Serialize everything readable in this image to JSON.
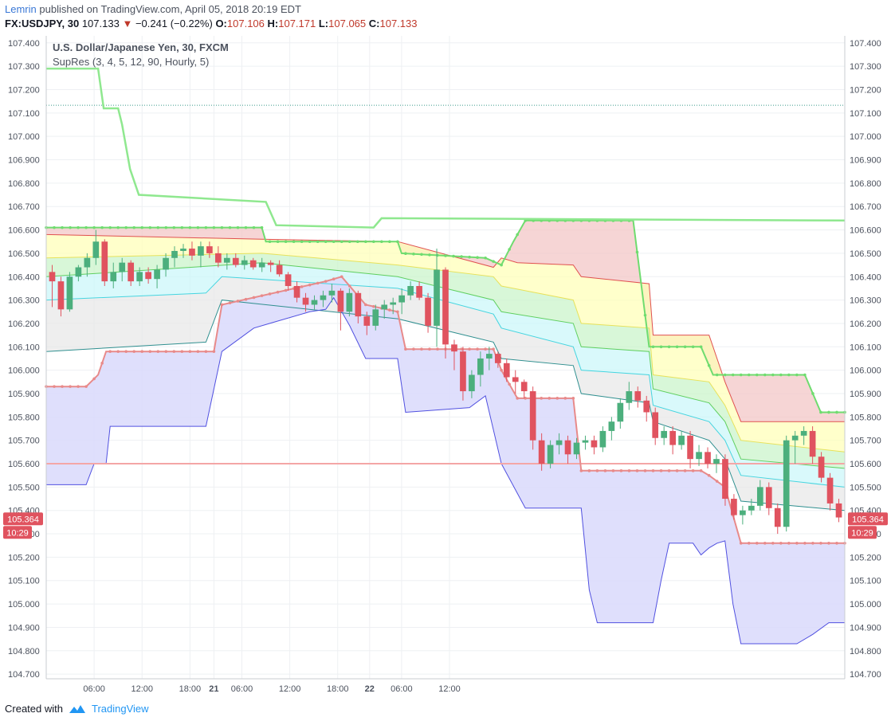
{
  "header": {
    "author": "Lemrin",
    "published_text": "published on TradingView.com, April 05, 2018 20:19 EDT",
    "symbol": "FX:USDJPY, 30",
    "last": "107.133",
    "change": "−0.241 (−0.22%)",
    "o_label": "O:",
    "o": "107.106",
    "h_label": "H:",
    "h": "107.171",
    "l_label": "L:",
    "l": "107.065",
    "c_label": "C:",
    "c": "107.133"
  },
  "legend": {
    "title": "U.S. Dollar/Japanese Yen, 30, FXCM",
    "indicator": "SupRes (3, 4, 5, 12, 90, Hourly, 5)"
  },
  "price_tag": {
    "value": "105.364",
    "time": "10:29"
  },
  "footer": {
    "created": "Created with",
    "brand": "TradingView"
  },
  "colors": {
    "up": "#4caf7d",
    "down": "#e0535f",
    "support": "#e88a8a",
    "resistance": "#6fdc6f",
    "band_low": "#5050e0"
  },
  "chart_data": {
    "type": "candlestick",
    "title": "U.S. Dollar/Japanese Yen, 30, FXCM",
    "y_ticks": [
      "107.400",
      "107.300",
      "107.200",
      "107.100",
      "107.000",
      "106.900",
      "106.800",
      "106.700",
      "106.600",
      "106.500",
      "106.400",
      "106.300",
      "106.200",
      "106.100",
      "106.000",
      "105.900",
      "105.800",
      "105.700",
      "105.600",
      "105.500",
      "105.400",
      "105.300",
      "105.200",
      "105.100",
      "105.000",
      "104.900",
      "104.800",
      "104.700"
    ],
    "x_ticks": [
      "06:00",
      "12:00",
      "18:00",
      "21",
      "06:00",
      "12:00",
      "18:00",
      "22",
      "06:00",
      "12:00"
    ],
    "ylim": [
      104.68,
      107.43
    ],
    "xlim": [
      0,
      100
    ],
    "x_tick_positions": [
      6,
      12,
      18,
      21,
      24.5,
      30.5,
      36.5,
      40.5,
      44.5,
      50.5
    ],
    "candles": [
      {
        "o": 106.42,
        "h": 106.45,
        "l": 106.27,
        "c": 106.38
      },
      {
        "o": 106.38,
        "h": 106.4,
        "l": 106.23,
        "c": 106.26
      },
      {
        "o": 106.26,
        "h": 106.42,
        "l": 106.25,
        "c": 106.4
      },
      {
        "o": 106.4,
        "h": 106.45,
        "l": 106.38,
        "c": 106.44
      },
      {
        "o": 106.44,
        "h": 106.5,
        "l": 106.4,
        "c": 106.48
      },
      {
        "o": 106.48,
        "h": 106.6,
        "l": 106.45,
        "c": 106.55
      },
      {
        "o": 106.55,
        "h": 106.56,
        "l": 106.36,
        "c": 106.38
      },
      {
        "o": 106.38,
        "h": 106.46,
        "l": 106.35,
        "c": 106.42
      },
      {
        "o": 106.42,
        "h": 106.48,
        "l": 106.38,
        "c": 106.46
      },
      {
        "o": 106.46,
        "h": 106.47,
        "l": 106.36,
        "c": 106.38
      },
      {
        "o": 106.38,
        "h": 106.44,
        "l": 106.36,
        "c": 106.42
      },
      {
        "o": 106.42,
        "h": 106.44,
        "l": 106.37,
        "c": 106.39
      },
      {
        "o": 106.39,
        "h": 106.45,
        "l": 106.35,
        "c": 106.43
      },
      {
        "o": 106.43,
        "h": 106.5,
        "l": 106.4,
        "c": 106.48
      },
      {
        "o": 106.48,
        "h": 106.53,
        "l": 106.44,
        "c": 106.51
      },
      {
        "o": 106.51,
        "h": 106.54,
        "l": 106.48,
        "c": 106.52
      },
      {
        "o": 106.52,
        "h": 106.55,
        "l": 106.47,
        "c": 106.49
      },
      {
        "o": 106.49,
        "h": 106.55,
        "l": 106.44,
        "c": 106.53
      },
      {
        "o": 106.53,
        "h": 106.55,
        "l": 106.48,
        "c": 106.5
      },
      {
        "o": 106.5,
        "h": 106.53,
        "l": 106.44,
        "c": 106.46
      },
      {
        "o": 106.46,
        "h": 106.5,
        "l": 106.43,
        "c": 106.48
      },
      {
        "o": 106.48,
        "h": 106.5,
        "l": 106.44,
        "c": 106.45
      },
      {
        "o": 106.45,
        "h": 106.49,
        "l": 106.43,
        "c": 106.47
      },
      {
        "o": 106.47,
        "h": 106.48,
        "l": 106.43,
        "c": 106.44
      },
      {
        "o": 106.44,
        "h": 106.48,
        "l": 106.42,
        "c": 106.46
      },
      {
        "o": 106.46,
        "h": 106.47,
        "l": 106.42,
        "c": 106.45
      },
      {
        "o": 106.45,
        "h": 106.47,
        "l": 106.4,
        "c": 106.41
      },
      {
        "o": 106.41,
        "h": 106.42,
        "l": 106.34,
        "c": 106.36
      },
      {
        "o": 106.36,
        "h": 106.38,
        "l": 106.29,
        "c": 106.31
      },
      {
        "o": 106.31,
        "h": 106.33,
        "l": 106.25,
        "c": 106.28
      },
      {
        "o": 106.28,
        "h": 106.32,
        "l": 106.26,
        "c": 106.3
      },
      {
        "o": 106.3,
        "h": 106.34,
        "l": 106.27,
        "c": 106.32
      },
      {
        "o": 106.32,
        "h": 106.37,
        "l": 106.29,
        "c": 106.34
      },
      {
        "o": 106.34,
        "h": 106.35,
        "l": 106.17,
        "c": 106.25
      },
      {
        "o": 106.25,
        "h": 106.35,
        "l": 106.23,
        "c": 106.33
      },
      {
        "o": 106.33,
        "h": 106.34,
        "l": 106.2,
        "c": 106.23
      },
      {
        "o": 106.23,
        "h": 106.25,
        "l": 106.15,
        "c": 106.19
      },
      {
        "o": 106.19,
        "h": 106.28,
        "l": 106.17,
        "c": 106.26
      },
      {
        "o": 106.26,
        "h": 106.3,
        "l": 106.22,
        "c": 106.28
      },
      {
        "o": 106.28,
        "h": 106.31,
        "l": 106.24,
        "c": 106.29
      },
      {
        "o": 106.29,
        "h": 106.35,
        "l": 106.24,
        "c": 106.32
      },
      {
        "o": 106.32,
        "h": 106.38,
        "l": 106.3,
        "c": 106.36
      },
      {
        "o": 106.36,
        "h": 106.38,
        "l": 106.3,
        "c": 106.31
      },
      {
        "o": 106.31,
        "h": 106.33,
        "l": 106.16,
        "c": 106.19
      },
      {
        "o": 106.19,
        "h": 106.52,
        "l": 106.1,
        "c": 106.43
      },
      {
        "o": 106.43,
        "h": 106.44,
        "l": 106.05,
        "c": 106.11
      },
      {
        "o": 106.11,
        "h": 106.13,
        "l": 106.0,
        "c": 106.08
      },
      {
        "o": 106.08,
        "h": 106.1,
        "l": 105.87,
        "c": 105.91
      },
      {
        "o": 105.91,
        "h": 106.0,
        "l": 105.88,
        "c": 105.98
      },
      {
        "o": 105.98,
        "h": 106.08,
        "l": 105.93,
        "c": 106.05
      },
      {
        "o": 106.05,
        "h": 106.1,
        "l": 106.0,
        "c": 106.07
      },
      {
        "o": 106.07,
        "h": 106.08,
        "l": 106.01,
        "c": 106.03
      },
      {
        "o": 106.03,
        "h": 106.05,
        "l": 105.95,
        "c": 105.97
      },
      {
        "o": 105.97,
        "h": 106.0,
        "l": 105.9,
        "c": 105.95
      },
      {
        "o": 105.95,
        "h": 105.96,
        "l": 105.88,
        "c": 105.91
      },
      {
        "o": 105.91,
        "h": 105.93,
        "l": 105.66,
        "c": 105.7
      },
      {
        "o": 105.7,
        "h": 105.73,
        "l": 105.57,
        "c": 105.6
      },
      {
        "o": 105.6,
        "h": 105.7,
        "l": 105.58,
        "c": 105.68
      },
      {
        "o": 105.68,
        "h": 105.73,
        "l": 105.64,
        "c": 105.7
      },
      {
        "o": 105.7,
        "h": 105.72,
        "l": 105.6,
        "c": 105.64
      },
      {
        "o": 105.64,
        "h": 105.71,
        "l": 105.62,
        "c": 105.69
      },
      {
        "o": 105.69,
        "h": 105.72,
        "l": 105.66,
        "c": 105.7
      },
      {
        "o": 105.7,
        "h": 105.72,
        "l": 105.64,
        "c": 105.67
      },
      {
        "o": 105.67,
        "h": 105.76,
        "l": 105.65,
        "c": 105.74
      },
      {
        "o": 105.74,
        "h": 105.8,
        "l": 105.7,
        "c": 105.78
      },
      {
        "o": 105.78,
        "h": 105.88,
        "l": 105.75,
        "c": 105.86
      },
      {
        "o": 105.86,
        "h": 105.95,
        "l": 105.83,
        "c": 105.91
      },
      {
        "o": 105.91,
        "h": 105.93,
        "l": 105.84,
        "c": 105.87
      },
      {
        "o": 105.87,
        "h": 105.89,
        "l": 105.78,
        "c": 105.82
      },
      {
        "o": 105.82,
        "h": 105.84,
        "l": 105.68,
        "c": 105.71
      },
      {
        "o": 105.71,
        "h": 105.76,
        "l": 105.68,
        "c": 105.74
      },
      {
        "o": 105.74,
        "h": 105.76,
        "l": 105.64,
        "c": 105.68
      },
      {
        "o": 105.68,
        "h": 105.74,
        "l": 105.66,
        "c": 105.72
      },
      {
        "o": 105.72,
        "h": 105.74,
        "l": 105.58,
        "c": 105.62
      },
      {
        "o": 105.62,
        "h": 105.68,
        "l": 105.59,
        "c": 105.65
      },
      {
        "o": 105.65,
        "h": 105.67,
        "l": 105.58,
        "c": 105.6
      },
      {
        "o": 105.6,
        "h": 105.64,
        "l": 105.56,
        "c": 105.62
      },
      {
        "o": 105.62,
        "h": 105.64,
        "l": 105.42,
        "c": 105.45
      },
      {
        "o": 105.45,
        "h": 105.47,
        "l": 105.36,
        "c": 105.38
      },
      {
        "o": 105.38,
        "h": 105.42,
        "l": 105.34,
        "c": 105.4
      },
      {
        "o": 105.4,
        "h": 105.45,
        "l": 105.38,
        "c": 105.42
      },
      {
        "o": 105.42,
        "h": 105.53,
        "l": 105.4,
        "c": 105.5
      },
      {
        "o": 105.5,
        "h": 105.52,
        "l": 105.38,
        "c": 105.41
      },
      {
        "o": 105.41,
        "h": 105.43,
        "l": 105.3,
        "c": 105.33
      },
      {
        "o": 105.33,
        "h": 105.72,
        "l": 105.31,
        "c": 105.7
      },
      {
        "o": 105.7,
        "h": 105.74,
        "l": 105.6,
        "c": 105.72
      },
      {
        "o": 105.72,
        "h": 105.76,
        "l": 105.68,
        "c": 105.74
      },
      {
        "o": 105.74,
        "h": 105.76,
        "l": 105.6,
        "c": 105.63
      },
      {
        "o": 105.63,
        "h": 105.65,
        "l": 105.52,
        "c": 105.54
      },
      {
        "o": 105.54,
        "h": 105.56,
        "l": 105.4,
        "c": 105.43
      },
      {
        "o": 105.43,
        "h": 105.45,
        "l": 105.35,
        "c": 105.37
      }
    ],
    "current_price": 105.364,
    "dotted_line": 107.133,
    "pink_level": 105.6,
    "r3_line": [
      [
        0,
        107.29
      ],
      [
        6.5,
        107.29
      ],
      [
        7.2,
        107.12
      ],
      [
        9.0,
        107.12
      ],
      [
        9.5,
        107.05
      ],
      [
        10.5,
        106.86
      ],
      [
        11.6,
        106.75
      ],
      [
        27.5,
        106.72
      ],
      [
        28.8,
        106.62
      ],
      [
        41.0,
        106.61
      ],
      [
        42.0,
        106.65
      ],
      [
        100,
        106.64
      ]
    ],
    "top_dots": [
      [
        0,
        106.61
      ],
      [
        27,
        106.61
      ],
      [
        27.5,
        106.55
      ],
      [
        44,
        106.55
      ],
      [
        44.5,
        106.5
      ],
      [
        55,
        106.48
      ],
      [
        57,
        106.45
      ],
      [
        58.5,
        106.55
      ],
      [
        60,
        106.64
      ],
      [
        73.5,
        106.64
      ],
      [
        75.5,
        106.1
      ],
      [
        82,
        106.1
      ],
      [
        83.5,
        105.98
      ],
      [
        95,
        105.98
      ],
      [
        97,
        105.82
      ],
      [
        100,
        105.82
      ]
    ],
    "support_dots": [
      [
        0,
        105.93
      ],
      [
        5,
        105.93
      ],
      [
        6.5,
        105.98
      ],
      [
        7.5,
        106.08
      ],
      [
        21,
        106.08
      ],
      [
        22,
        106.28
      ],
      [
        35,
        106.38
      ],
      [
        37,
        106.4
      ],
      [
        40,
        106.28
      ],
      [
        44,
        106.25
      ],
      [
        45,
        106.09
      ],
      [
        56,
        106.09
      ],
      [
        57,
        106.0
      ],
      [
        59,
        105.88
      ],
      [
        66,
        105.88
      ],
      [
        67,
        105.57
      ],
      [
        82,
        105.57
      ],
      [
        83,
        105.55
      ],
      [
        85,
        105.5
      ],
      [
        87,
        105.26
      ],
      [
        100,
        105.26
      ]
    ],
    "band_low": [
      [
        0,
        105.51
      ],
      [
        5,
        105.51
      ],
      [
        6,
        105.6
      ],
      [
        7.5,
        105.6
      ],
      [
        8,
        105.76
      ],
      [
        20,
        105.76
      ],
      [
        22,
        106.08
      ],
      [
        26,
        106.18
      ],
      [
        28,
        106.2
      ],
      [
        33,
        106.25
      ],
      [
        35,
        106.26
      ],
      [
        36,
        106.31
      ],
      [
        38,
        106.19
      ],
      [
        40,
        106.05
      ],
      [
        41,
        106.05
      ],
      [
        44,
        106.05
      ],
      [
        45,
        105.82
      ],
      [
        53,
        105.84
      ],
      [
        55,
        105.89
      ],
      [
        57,
        105.6
      ],
      [
        60,
        105.41
      ],
      [
        67,
        105.41
      ],
      [
        68,
        105.06
      ],
      [
        69,
        104.92
      ],
      [
        76,
        104.92
      ],
      [
        77,
        105.1
      ],
      [
        78,
        105.26
      ],
      [
        81,
        105.26
      ],
      [
        82,
        105.21
      ],
      [
        83,
        105.24
      ],
      [
        84,
        105.26
      ],
      [
        85,
        105.27
      ],
      [
        86,
        105.0
      ],
      [
        87,
        104.83
      ],
      [
        94,
        104.83
      ],
      [
        96,
        104.87
      ],
      [
        98,
        104.92
      ],
      [
        100,
        104.92
      ]
    ],
    "bands": [
      {
        "color": "#f2c3c3",
        "line": "#e05050",
        "top": "r3",
        "pts": [
          [
            0,
            106.58
          ],
          [
            27,
            106.56
          ],
          [
            44,
            106.55
          ],
          [
            56,
            106.44
          ],
          [
            57,
            106.48
          ],
          [
            59,
            106.46
          ],
          [
            66,
            106.45
          ],
          [
            67,
            106.4
          ],
          [
            75.5,
            106.37
          ],
          [
            76,
            106.15
          ],
          [
            83,
            106.15
          ],
          [
            85,
            105.95
          ],
          [
            87,
            105.78
          ],
          [
            100,
            105.78
          ]
        ]
      },
      {
        "color": "#ffffb5",
        "line": "#e7e25a",
        "pts": [
          [
            0,
            106.48
          ],
          [
            27,
            106.5
          ],
          [
            44,
            106.45
          ],
          [
            56,
            106.4
          ],
          [
            57,
            106.36
          ],
          [
            66,
            106.3
          ],
          [
            67,
            106.2
          ],
          [
            75.5,
            106.18
          ],
          [
            76,
            105.98
          ],
          [
            83,
            105.95
          ],
          [
            85,
            105.85
          ],
          [
            87,
            105.7
          ],
          [
            100,
            105.65
          ]
        ]
      },
      {
        "color": "#c8f4c8",
        "line": "#5fcf5f",
        "pts": [
          [
            0,
            106.4
          ],
          [
            27,
            106.46
          ],
          [
            44,
            106.4
          ],
          [
            56,
            106.3
          ],
          [
            57,
            106.25
          ],
          [
            66,
            106.2
          ],
          [
            67,
            106.1
          ],
          [
            75.5,
            106.08
          ],
          [
            76,
            105.92
          ],
          [
            83,
            105.86
          ],
          [
            85,
            105.78
          ],
          [
            87,
            105.62
          ],
          [
            100,
            105.58
          ]
        ]
      },
      {
        "color": "#c9f6f9",
        "line": "#45d5e0",
        "pts": [
          [
            0,
            106.3
          ],
          [
            20,
            106.33
          ],
          [
            22,
            106.4
          ],
          [
            44,
            106.35
          ],
          [
            56,
            106.24
          ],
          [
            57,
            106.18
          ],
          [
            66,
            106.1
          ],
          [
            67,
            106.0
          ],
          [
            75.5,
            105.98
          ],
          [
            76,
            105.85
          ],
          [
            83,
            105.78
          ],
          [
            85,
            105.7
          ],
          [
            87,
            105.55
          ],
          [
            100,
            105.5
          ]
        ]
      },
      {
        "color": "#e7e7e7",
        "line": "#2f8f8f",
        "pts": [
          [
            0,
            106.08
          ],
          [
            20,
            106.12
          ],
          [
            22,
            106.3
          ],
          [
            44,
            106.22
          ],
          [
            56,
            106.12
          ],
          [
            57,
            106.05
          ],
          [
            66,
            106.02
          ],
          [
            67,
            105.9
          ],
          [
            75.5,
            105.86
          ],
          [
            76,
            105.78
          ],
          [
            83,
            105.7
          ],
          [
            85,
            105.62
          ],
          [
            87,
            105.44
          ],
          [
            100,
            105.4
          ]
        ]
      }
    ]
  }
}
